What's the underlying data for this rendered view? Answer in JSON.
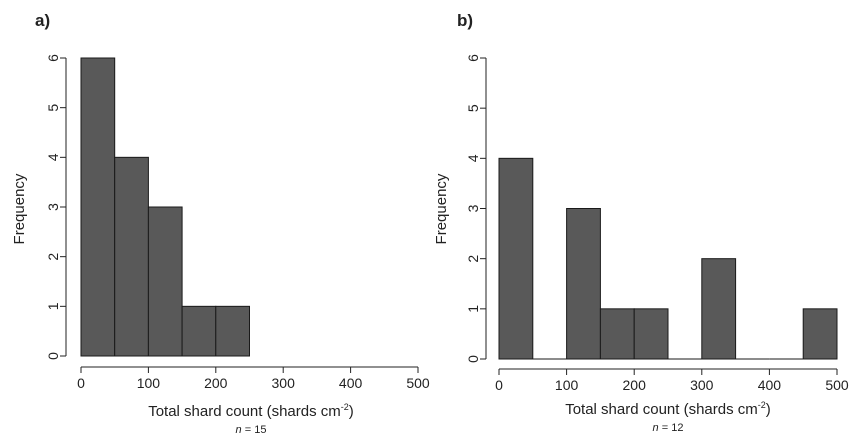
{
  "chart_data": [
    {
      "type": "bar",
      "panel_label": "a)",
      "bins": [
        {
          "start": 0,
          "end": 50,
          "count": 6
        },
        {
          "start": 50,
          "end": 100,
          "count": 4
        },
        {
          "start": 100,
          "end": 150,
          "count": 3
        },
        {
          "start": 150,
          "end": 200,
          "count": 1
        },
        {
          "start": 200,
          "end": 250,
          "count": 1
        }
      ],
      "xlabel": "Total shard count (shards cm",
      "xlabel_sup": "-2",
      "xlabel_tail": ")",
      "ylabel": "Frequency",
      "xlim": [
        0,
        500
      ],
      "ylim": [
        0,
        6
      ],
      "x_ticks": [
        "0",
        "100",
        "200",
        "300",
        "400",
        "500"
      ],
      "y_ticks": [
        "0",
        "1",
        "2",
        "3",
        "4",
        "5",
        "6"
      ],
      "n_prefix": "n",
      "n_value": " = 15",
      "grid": false,
      "bar_color": "#595959"
    },
    {
      "type": "bar",
      "panel_label": "b)",
      "bins": [
        {
          "start": 0,
          "end": 50,
          "count": 4
        },
        {
          "start": 50,
          "end": 100,
          "count": 0
        },
        {
          "start": 100,
          "end": 150,
          "count": 3
        },
        {
          "start": 150,
          "end": 200,
          "count": 1
        },
        {
          "start": 200,
          "end": 250,
          "count": 1
        },
        {
          "start": 250,
          "end": 300,
          "count": 0
        },
        {
          "start": 300,
          "end": 350,
          "count": 2
        },
        {
          "start": 350,
          "end": 400,
          "count": 0
        },
        {
          "start": 400,
          "end": 450,
          "count": 0
        },
        {
          "start": 450,
          "end": 500,
          "count": 1
        }
      ],
      "xlabel": "Total shard count (shards cm",
      "xlabel_sup": "-2",
      "xlabel_tail": ")",
      "ylabel": "Frequency",
      "xlim": [
        0,
        500
      ],
      "ylim": [
        0,
        6
      ],
      "x_ticks": [
        "0",
        "100",
        "200",
        "300",
        "400",
        "500"
      ],
      "y_ticks": [
        "0",
        "1",
        "2",
        "3",
        "4",
        "5",
        "6"
      ],
      "n_prefix": "n",
      "n_value": " = 12",
      "grid": false,
      "bar_color": "#595959"
    }
  ]
}
